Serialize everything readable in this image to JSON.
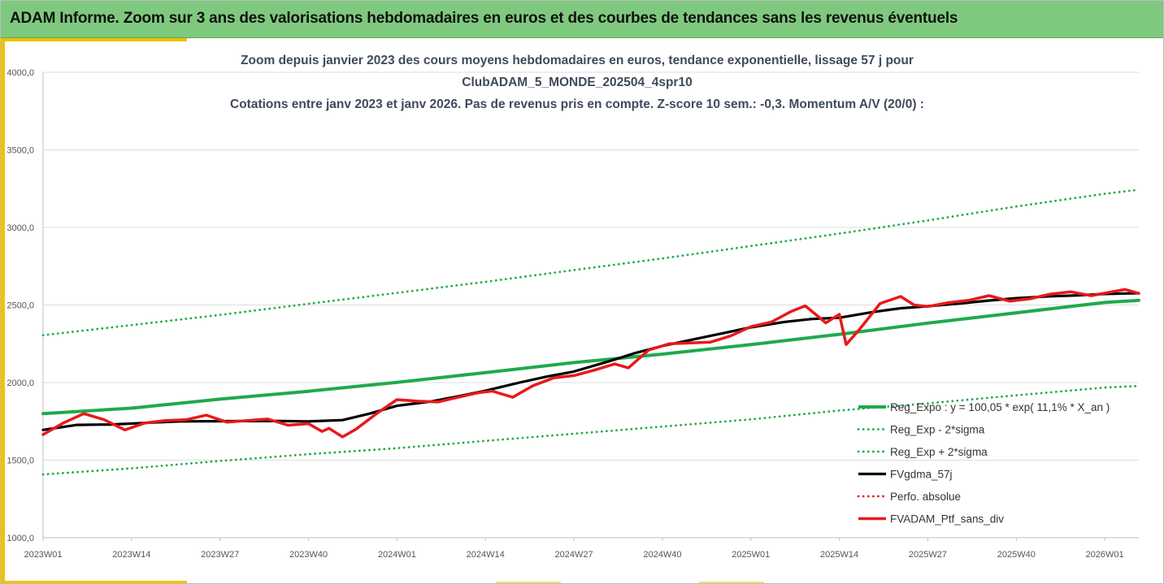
{
  "header": {
    "title": "ADAM Informe. Zoom sur 3 ans des valorisations hebdomadaires en euros et des courbes de tendances sans les revenus éventuels"
  },
  "chart_data": {
    "type": "line",
    "title_lines": [
      "Zoom depuis janvier 2023 des cours moyens hebdomadaires  en euros, tendance exponentielle, lissage 57 j pour",
      "ClubADAM_5_MONDE_202504_4spr10",
      "Cotations entre janv 2023 et janv 2026. Pas de revenus pris en compte. Z-score 10 sem.: -0,3. Momentum A/V (20/0) :"
    ],
    "x_ticks": [
      "2023W01",
      "2023W14",
      "2023W27",
      "2023W40",
      "2024W01",
      "2024W14",
      "2024W27",
      "2024W40",
      "2025W01",
      "2025W14",
      "2025W27",
      "2025W40",
      "2026W01"
    ],
    "x_tick_index": [
      0,
      13,
      26,
      39,
      52,
      65,
      78,
      91,
      104,
      117,
      130,
      143,
      156
    ],
    "x_range": [
      0,
      161
    ],
    "y_ticks": [
      "1000,0",
      "1500,0",
      "2000,0",
      "2500,0",
      "3000,0",
      "3500,0",
      "4000,0"
    ],
    "y_tick_values": [
      1000,
      1500,
      2000,
      2500,
      3000,
      3500,
      4000
    ],
    "ylim": [
      1000,
      4000
    ],
    "legend_position": "right",
    "colors": {
      "green": "#1faa4b",
      "dotted_green": "#1faa4b",
      "black": "#000000",
      "red": "#e8191a",
      "grid": "#dcdcdc"
    },
    "series": [
      {
        "name": "Reg_Expo : y = 100,05 * exp( 11,1% *  X_an )",
        "style": "solid",
        "color": "#1faa4b",
        "width": 4,
        "x": [
          0,
          13,
          26,
          39,
          52,
          65,
          78,
          91,
          104,
          117,
          130,
          143,
          156,
          161
        ],
        "y": [
          1800,
          1835,
          1893,
          1944,
          2001,
          2064,
          2129,
          2183,
          2245,
          2311,
          2383,
          2450,
          2516,
          2530
        ]
      },
      {
        "name": "Reg_Exp - 2*sigma",
        "style": "dotted",
        "color": "#1faa4b",
        "width": 2.5,
        "x": [
          0,
          13,
          26,
          39,
          52,
          65,
          78,
          91,
          104,
          117,
          130,
          143,
          156,
          161
        ],
        "y": [
          1408,
          1447,
          1495,
          1538,
          1577,
          1624,
          1670,
          1716,
          1763,
          1820,
          1866,
          1918,
          1968,
          1978
        ]
      },
      {
        "name": "Reg_Exp + 2*sigma",
        "style": "dotted",
        "color": "#1faa4b",
        "width": 2.5,
        "x": [
          0,
          13,
          26,
          39,
          52,
          65,
          78,
          91,
          104,
          117,
          130,
          143,
          156,
          161
        ],
        "y": [
          2305,
          2370,
          2436,
          2508,
          2578,
          2649,
          2725,
          2800,
          2880,
          2960,
          3045,
          3135,
          3217,
          3243
        ]
      },
      {
        "name": "FVgdma_57j",
        "style": "solid",
        "color": "#000000",
        "width": 3.2,
        "x": [
          0,
          5,
          10,
          15,
          20,
          25,
          30,
          35,
          39,
          44,
          48,
          52,
          57,
          61,
          65,
          70,
          74,
          78,
          83,
          87,
          91,
          96,
          100,
          104,
          109,
          113,
          117,
          122,
          126,
          130,
          135,
          139,
          143,
          148,
          152,
          156,
          161
        ],
        "y": [
          1695,
          1727,
          1730,
          1740,
          1750,
          1751,
          1752,
          1752,
          1750,
          1758,
          1800,
          1850,
          1878,
          1911,
          1947,
          2000,
          2038,
          2071,
          2135,
          2190,
          2236,
          2282,
          2319,
          2356,
          2391,
          2410,
          2418,
          2455,
          2479,
          2492,
          2511,
          2529,
          2544,
          2556,
          2562,
          2571,
          2576
        ]
      },
      {
        "name": "Perfo. absolue",
        "style": "dotted",
        "color": "#e8191a",
        "width": 2.5,
        "x": [],
        "y": []
      },
      {
        "name": "FVADAM_Ptf_sans_div",
        "style": "solid",
        "color": "#e8191a",
        "width": 3.5,
        "x": [
          0,
          3,
          6,
          9,
          12,
          15,
          18,
          21,
          24,
          27,
          30,
          33,
          36,
          39,
          41,
          42,
          44,
          46,
          49,
          52,
          55,
          58,
          61,
          64,
          66,
          69,
          72,
          75,
          78,
          81,
          84,
          86,
          89,
          92,
          95,
          98,
          101,
          104,
          107,
          110,
          112,
          115,
          117,
          118,
          120,
          123,
          126,
          128,
          130,
          133,
          136,
          139,
          142,
          145,
          148,
          151,
          154,
          157,
          159,
          161
        ],
        "y": [
          1665,
          1740,
          1800,
          1760,
          1695,
          1740,
          1755,
          1760,
          1790,
          1745,
          1755,
          1765,
          1725,
          1735,
          1685,
          1705,
          1650,
          1700,
          1800,
          1890,
          1880,
          1875,
          1905,
          1935,
          1945,
          1905,
          1980,
          2030,
          2045,
          2080,
          2120,
          2095,
          2210,
          2250,
          2255,
          2260,
          2300,
          2360,
          2390,
          2460,
          2495,
          2385,
          2440,
          2245,
          2345,
          2510,
          2555,
          2500,
          2490,
          2515,
          2530,
          2560,
          2525,
          2540,
          2570,
          2585,
          2560,
          2585,
          2600,
          2575
        ]
      }
    ]
  }
}
